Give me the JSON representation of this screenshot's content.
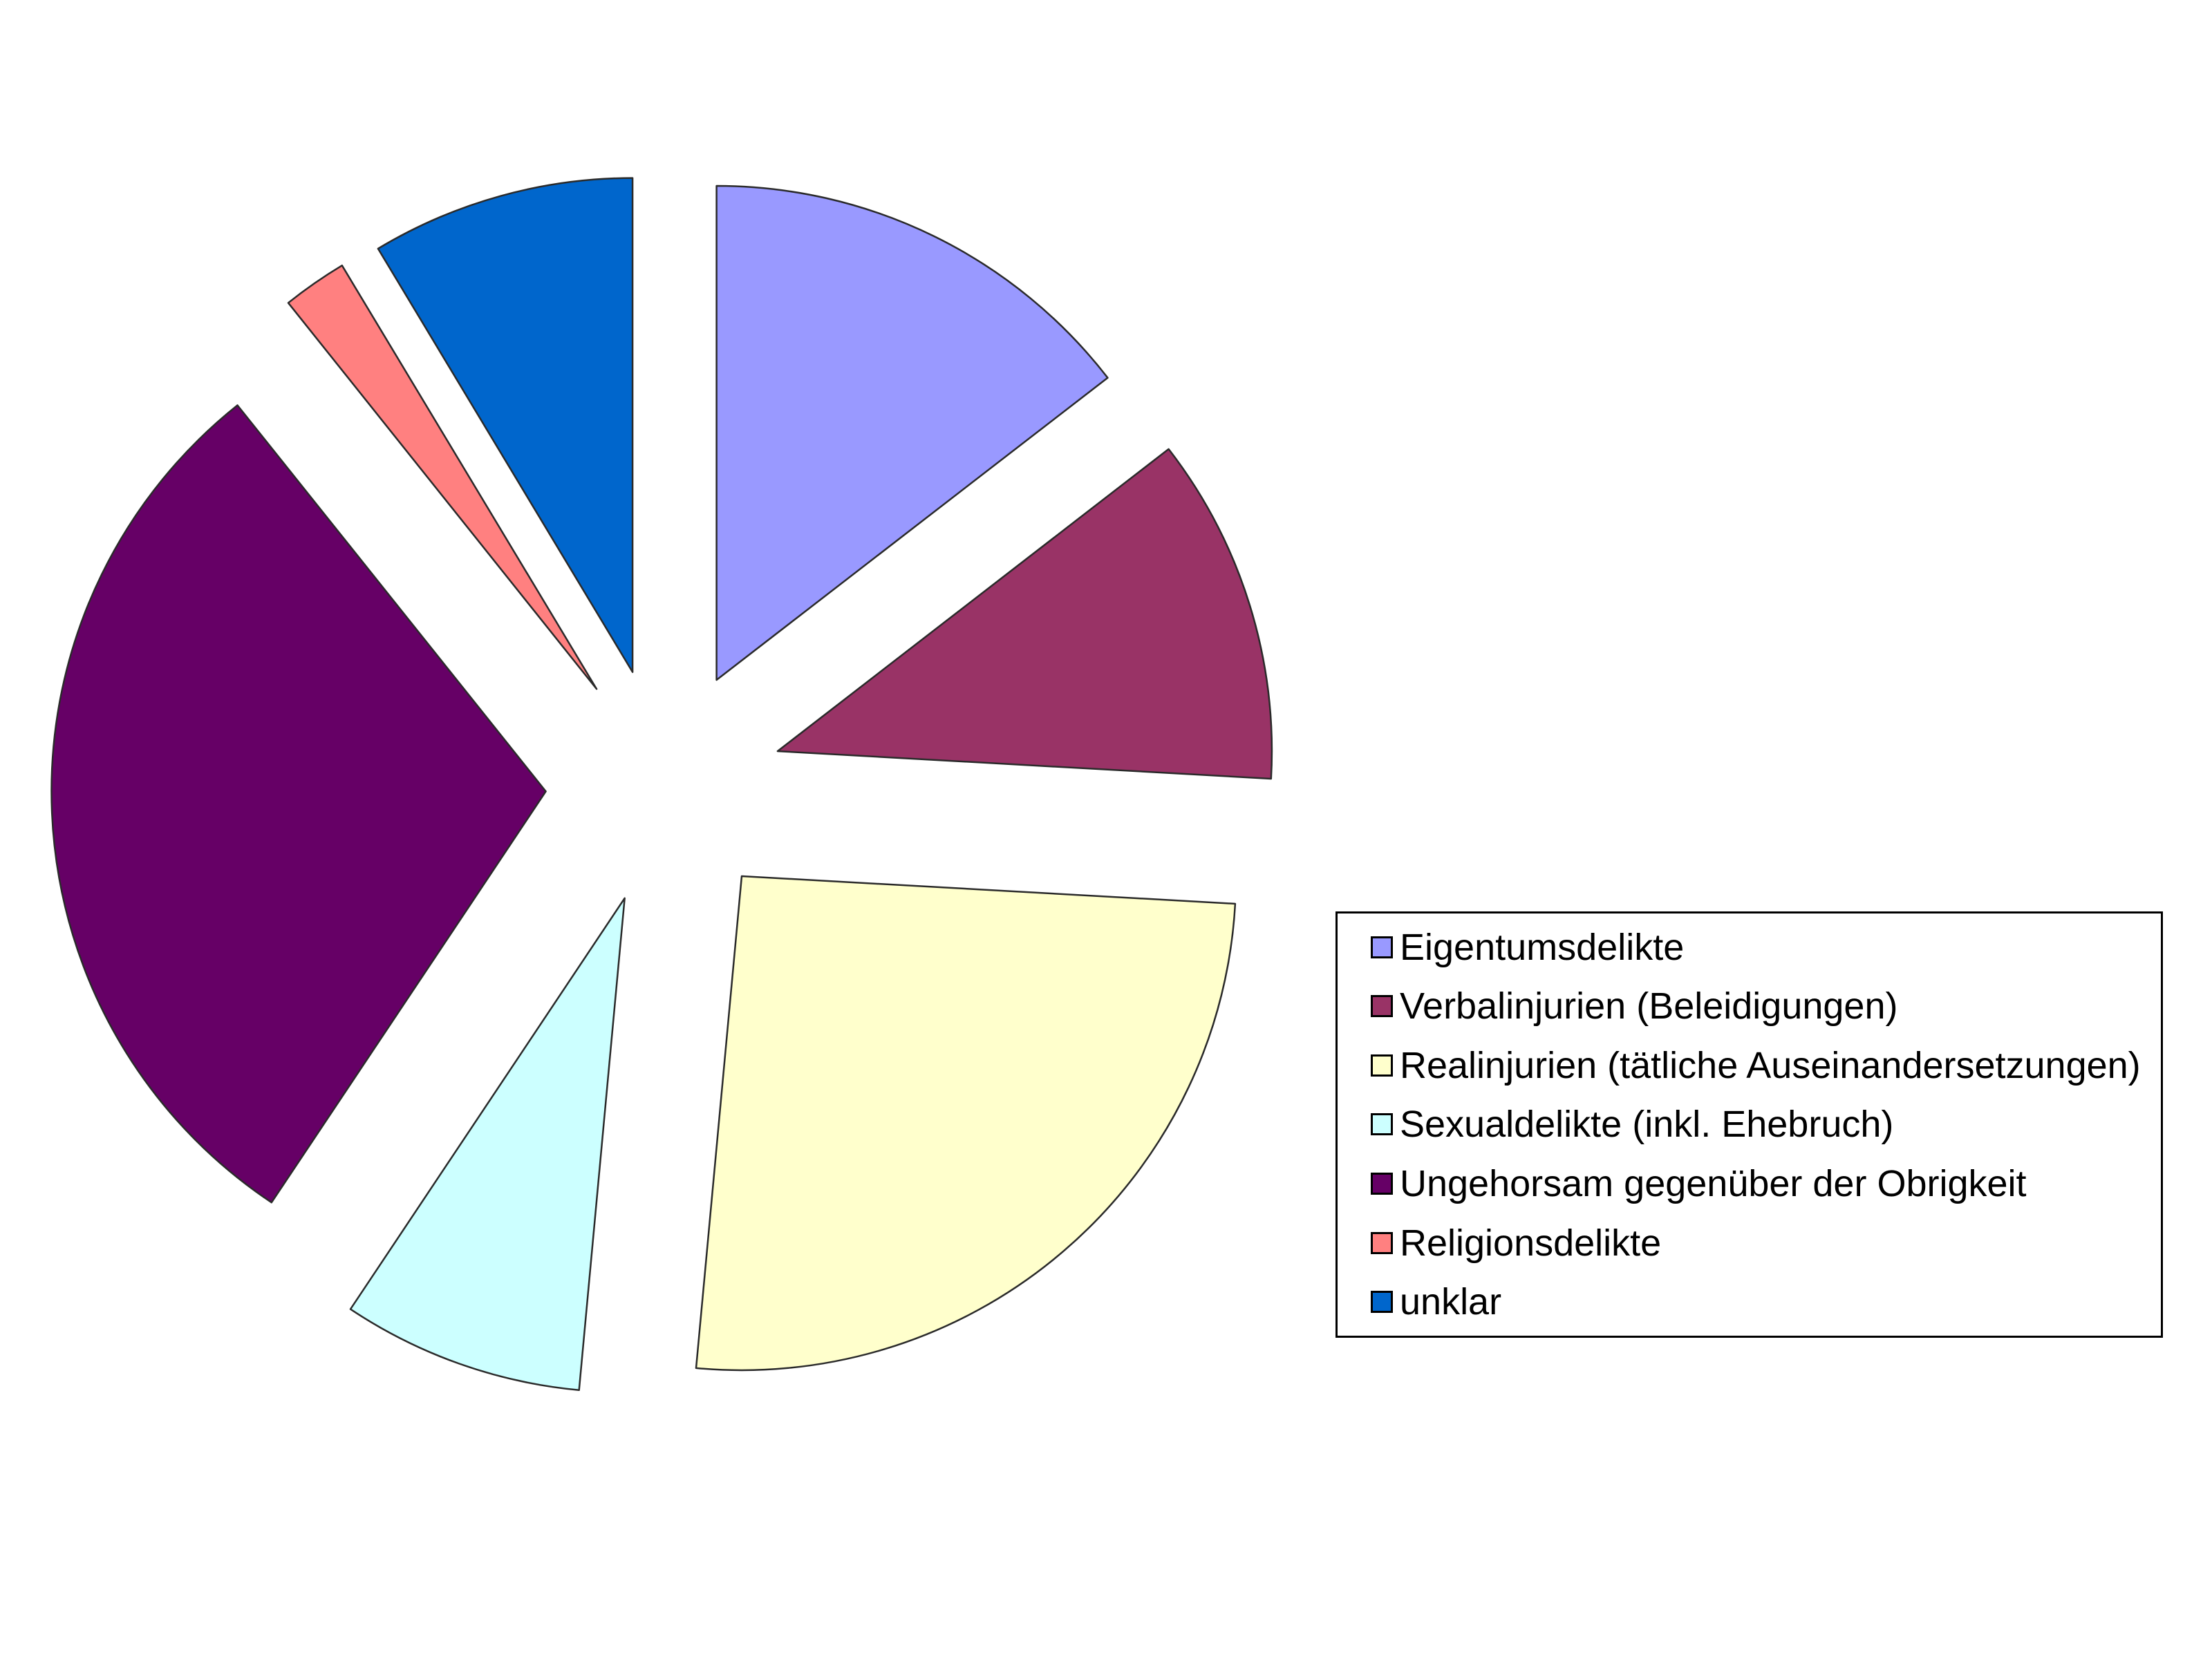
{
  "chart_data": {
    "type": "pie",
    "title": "",
    "legend_position": "right",
    "background_color": "#ffffff",
    "outline_color": "#2a2a2a",
    "start_angle_deg": 0,
    "direction": "clockwise",
    "exploded": true,
    "explode_ratio": 0.24,
    "slices": [
      {
        "label": "Eigentumsdelikte",
        "color": "#9999FF",
        "angle_deg": 52.3,
        "percent": 14.5
      },
      {
        "label": "Verbalinjurien (Beleidigungen)",
        "color": "#993366",
        "angle_deg": 40.9,
        "percent": 11.4
      },
      {
        "label": "Realinjurien (tätliche Auseinandersetzungen)",
        "color": "#FFFFCC",
        "angle_deg": 92.1,
        "percent": 25.6
      },
      {
        "label": "Sexualdelikte (inkl. Ehebruch)",
        "color": "#CCFFFF",
        "angle_deg": 28.4,
        "percent": 7.9
      },
      {
        "label": "Ungehorsam gegenüber der Obrigkeit",
        "color": "#660066",
        "angle_deg": 107.7,
        "percent": 29.9
      },
      {
        "label": "Religionsdelikte",
        "color": "#FF8080",
        "angle_deg": 7.6,
        "percent": 2.1
      },
      {
        "label": "unklar",
        "color": "#0066CC",
        "angle_deg": 31.0,
        "percent": 8.6
      }
    ]
  }
}
